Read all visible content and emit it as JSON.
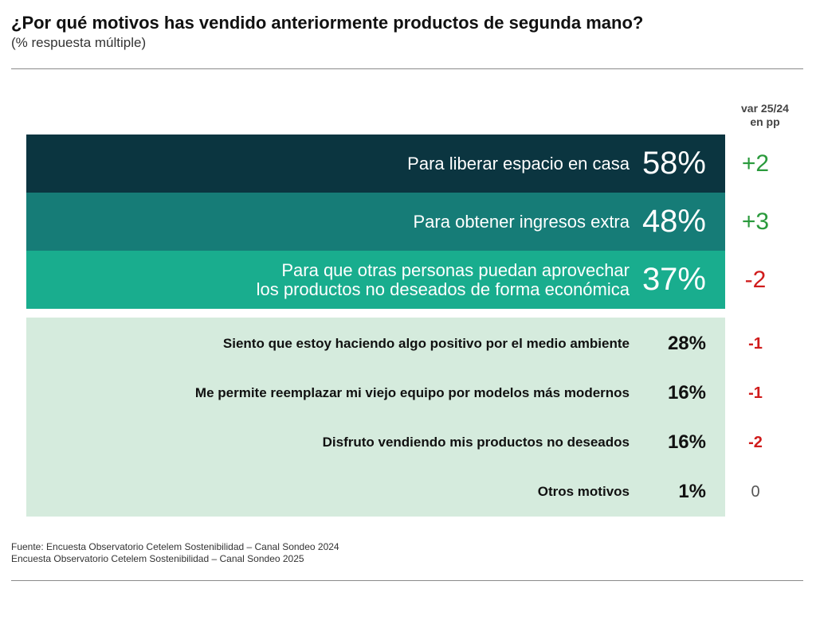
{
  "title": "¿Por qué motivos has vendido anteriormente productos de segunda mano?",
  "subtitle": "(% respuesta múltiple)",
  "var_header": {
    "line1": "var 25/24",
    "line2": "en pp"
  },
  "chart_data": {
    "type": "bar",
    "categories": [
      "Para liberar espacio en casa",
      "Para obtener ingresos extra",
      "Para que otras personas puedan aprovechar los productos no deseados de forma económica",
      "Siento que estoy haciendo algo positivo por el medio ambiente",
      "Me permite reemplazar mi viejo equipo por modelos más modernos",
      "Disfruto vendiendo mis productos no deseados",
      "Otros motivos"
    ],
    "values": [
      58,
      48,
      37,
      28,
      16,
      16,
      1
    ],
    "unit": "%",
    "variation_pp": [
      2,
      3,
      -2,
      -1,
      -1,
      -2,
      0
    ],
    "colors": {
      "row1": "#0b3540",
      "row2": "#167c77",
      "row3": "#19ad8e",
      "rest": "#d5ebdd",
      "positive": "#2a9a3c",
      "negative": "#d01c1c",
      "neutral": "#555555"
    }
  },
  "rows": [
    {
      "label_line1": "Para liberar espacio en casa",
      "label_line2": "",
      "pct": "58%",
      "var": "+2"
    },
    {
      "label_line1": "Para obtener ingresos extra",
      "label_line2": "",
      "pct": "48%",
      "var": "+3"
    },
    {
      "label_line1": "Para que otras personas puedan aprovechar",
      "label_line2": "los productos no deseados de forma económica",
      "pct": "37%",
      "var": "-2"
    },
    {
      "label_line1": "Siento que estoy haciendo algo positivo por el medio ambiente",
      "label_line2": "",
      "pct": "28%",
      "var": "-1"
    },
    {
      "label_line1": "Me permite reemplazar mi viejo equipo por modelos más modernos",
      "label_line2": "",
      "pct": "16%",
      "var": "-1"
    },
    {
      "label_line1": "Disfruto vendiendo mis productos no deseados",
      "label_line2": "",
      "pct": "16%",
      "var": "-2"
    },
    {
      "label_line1": "Otros motivos",
      "label_line2": "",
      "pct": "1%",
      "var": "0"
    }
  ],
  "source": {
    "line1": "Fuente: Encuesta Observatorio Cetelem Sostenibilidad – Canal Sondeo 2024",
    "line2": "Encuesta Observatorio Cetelem Sostenibilidad – Canal Sondeo 2025"
  }
}
